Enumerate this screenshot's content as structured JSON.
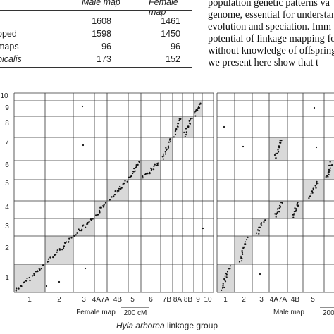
{
  "table": {
    "headers": [
      "Male map",
      "Female map"
    ],
    "rows": [
      {
        "label": "",
        "male": "1608",
        "female": "1461"
      },
      {
        "label": "oped",
        "male": "1598",
        "female": "1450"
      },
      {
        "label": "maps",
        "male": "96",
        "female": "96"
      },
      {
        "label": "picalis",
        "male": "173",
        "female": "152"
      }
    ]
  },
  "body_text": {
    "lines": [
      "population genetic patterns va",
      "genome, essential for understand",
      "evolution and speciation. Imm",
      "potential of linkage mapping fo",
      "without knowledge of offspring",
      "we present here show that t"
    ]
  },
  "figure": {
    "left_panel": {
      "y_tick_labels": [
        "1",
        "2",
        "3",
        "4",
        "5",
        "6",
        "7",
        "8",
        "9",
        "10"
      ],
      "x_tick_labels": [
        "1",
        "2",
        "3",
        "4A7A",
        "4B",
        "5",
        "6",
        "7B",
        "8A",
        "8B",
        "9",
        "10"
      ],
      "x_axis_label": "Female map",
      "scale_bar_label": "200 cM"
    },
    "right_panel": {
      "x_tick_labels": [
        "1",
        "2",
        "3",
        "4A7A",
        "4B",
        "5"
      ],
      "x_axis_label": "Male map",
      "scale_bar_label": "200"
    },
    "caption_italic": "Hyla arborea",
    "caption_rest": " linkage group",
    "colors": {
      "highlight": "#d9d9d9",
      "grid": "#333333",
      "dots": "#111111"
    }
  }
}
